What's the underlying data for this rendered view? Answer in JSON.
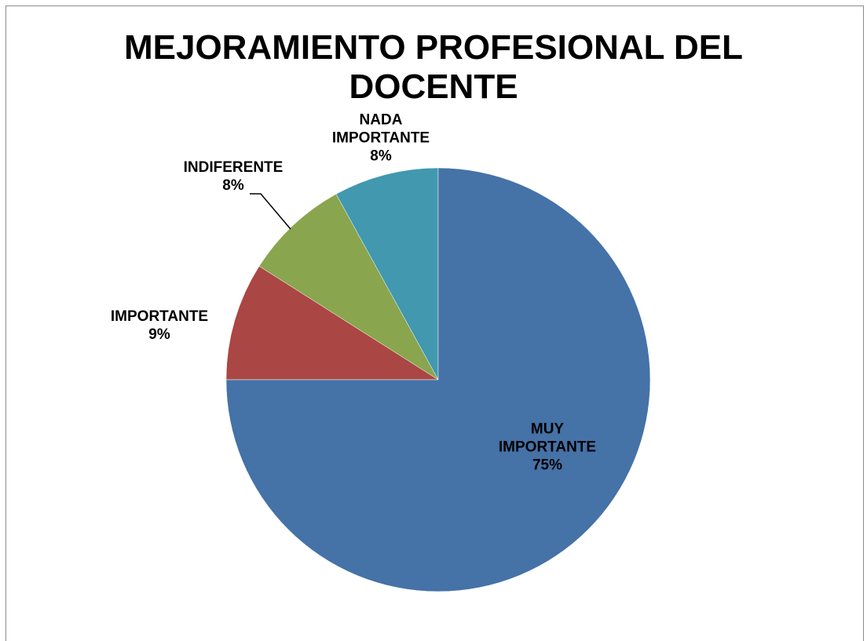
{
  "chart_data": {
    "type": "pie",
    "title": "MEJORAMIENTO PROFESIONAL DEL DOCENTE",
    "categories": [
      "MUY IMPORTANTE",
      "IMPORTANTE",
      "INDIFERENTE",
      "NADA IMPORTANTE"
    ],
    "values": [
      75,
      9,
      8,
      8
    ],
    "value_labels": [
      "75%",
      "9%",
      "8%",
      "8%"
    ],
    "colors": [
      "#4572a7",
      "#aa4643",
      "#89a54e",
      "#4198af"
    ]
  }
}
